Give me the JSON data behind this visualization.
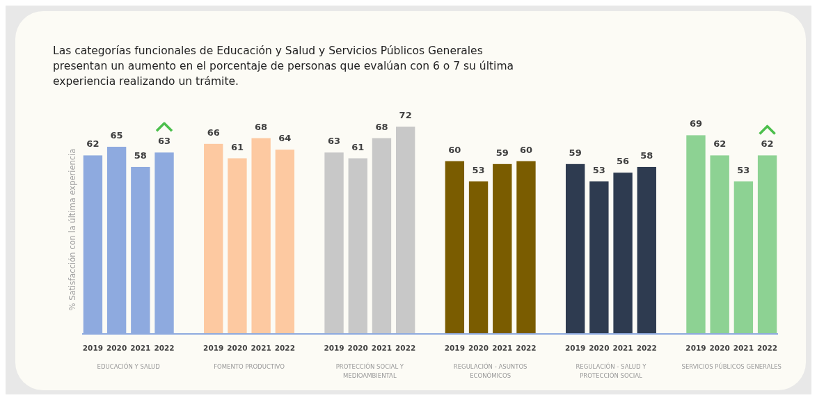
{
  "chart_data": {
    "type": "bar",
    "title": "Las categorías funcionales de Educación y Salud y Servicios Públicos Generales presentan un aumento en el porcentaje de personas que evalúan con 6 o 7 su última experiencia realizando un trámite.",
    "ylabel": "% Satisfacción con la última experiencia",
    "categories": [
      "EDUCACIÓN Y SALUD",
      "FOMENTO PRODUCTIVO",
      "PROTECCIÓN SOCIAL Y MEDIOAMBIENTAL",
      "REGULACIÓN - ASUNTOS ECONÓMICOS",
      "REGULACIÓN - SALUD Y PROTECCIÓN SOCIAL",
      "SERVICIOS PÚBLICOS GENERALES"
    ],
    "series": [
      {
        "name": "2019",
        "colors": [
          "#8eaadf",
          "#fdc9a1",
          "#c8c8c8",
          "#7a5c00",
          "#2e3b50",
          "#8dd293"
        ],
        "values": [
          62,
          66,
          63,
          60,
          59,
          69
        ]
      },
      {
        "name": "2020",
        "colors": [
          "#8eaadf",
          "#fdc9a1",
          "#c8c8c8",
          "#7a5c00",
          "#2e3b50",
          "#8dd293"
        ],
        "values": [
          65,
          61,
          61,
          53,
          53,
          62
        ]
      },
      {
        "name": "2021",
        "colors": [
          "#8eaadf",
          "#fdc9a1",
          "#c8c8c8",
          "#7a5c00",
          "#2e3b50",
          "#8dd293"
        ],
        "values": [
          58,
          68,
          68,
          59,
          56,
          53
        ]
      },
      {
        "name": "2022",
        "colors": [
          "#8eaadf",
          "#fdc9a1",
          "#c8c8c8",
          "#7a5c00",
          "#2e3b50",
          "#8dd293"
        ],
        "values": [
          63,
          64,
          72,
          60,
          58,
          62
        ]
      }
    ],
    "tick_labels": "x",
    "data_labels": true
  }
}
